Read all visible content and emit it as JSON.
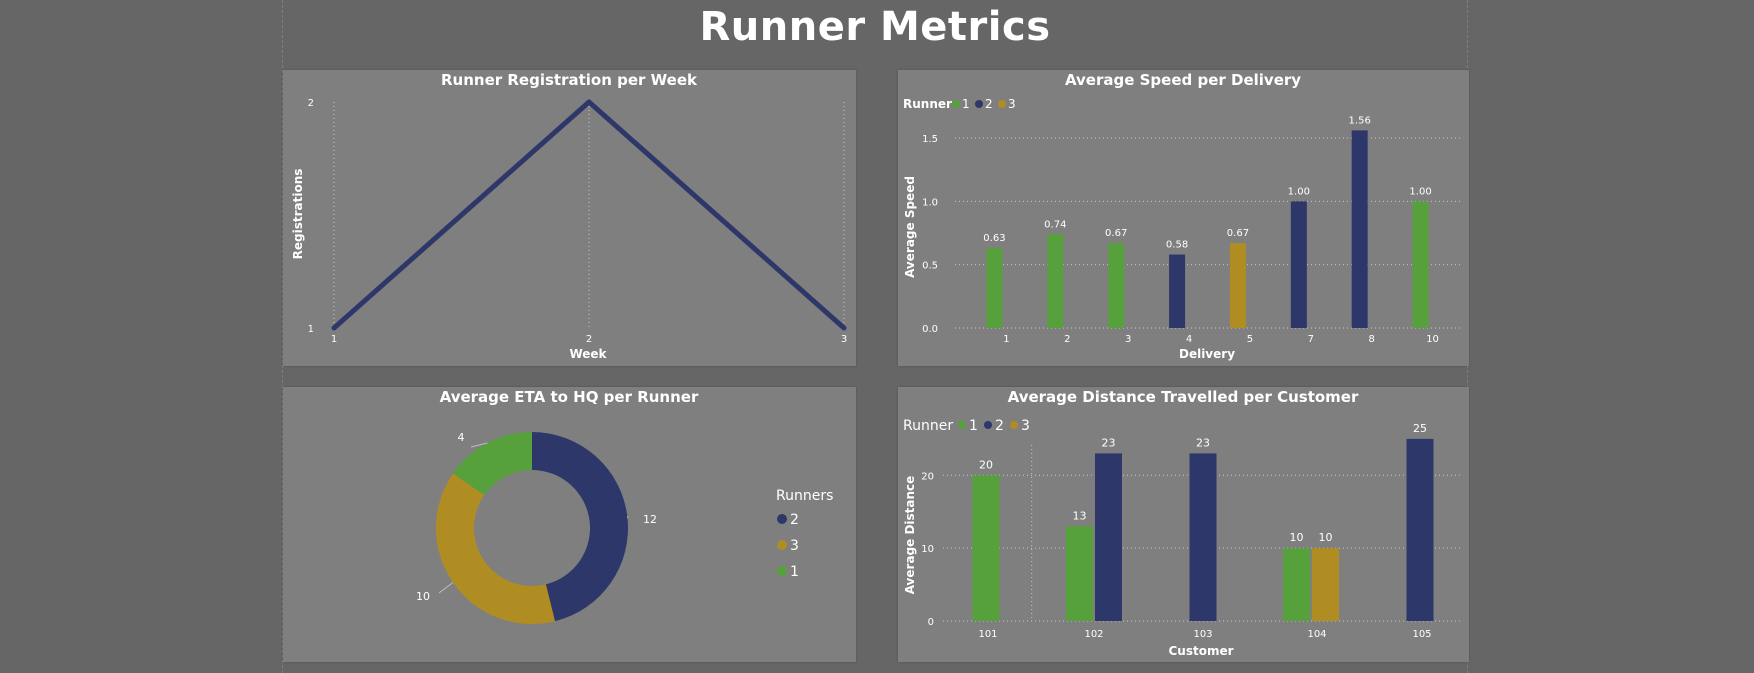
{
  "page": {
    "title": "Runner Metrics"
  },
  "colors": {
    "runner1": "#57a13c",
    "runner2": "#2d3769",
    "runner3": "#b08d22",
    "panel": "#7f7f7f",
    "background": "#666666"
  },
  "chart_data": [
    {
      "id": "registrations",
      "type": "line",
      "title": "Runner Registration per Week",
      "xlabel": "Week",
      "ylabel": "Registrations",
      "x": [
        "1",
        "2",
        "3"
      ],
      "y": [
        1,
        2,
        1
      ],
      "ylim": [
        1,
        2
      ],
      "yticks": [
        "1",
        "2"
      ],
      "grid": "vertical dotted",
      "color": "#2d3769"
    },
    {
      "id": "speed",
      "type": "bar",
      "title": "Average Speed per Delivery",
      "xlabel": "Delivery",
      "ylabel": "Average Speed",
      "legend_title": "Runner",
      "legend": [
        "1",
        "2",
        "3"
      ],
      "legend_position": "top-left",
      "categories": [
        "1",
        "2",
        "3",
        "4",
        "5",
        "7",
        "8",
        "10"
      ],
      "values": [
        0.63,
        0.74,
        0.67,
        0.58,
        0.67,
        1.0,
        1.56,
        1.0
      ],
      "value_labels": [
        "0.63",
        "0.74",
        "0.67",
        "0.58",
        "0.67",
        "1.00",
        "1.56",
        "1.00"
      ],
      "runner": [
        "1",
        "1",
        "1",
        "2",
        "3",
        "2",
        "2",
        "1"
      ],
      "ylim": [
        0,
        1.8
      ],
      "yticks": [
        "0.0",
        "0.5",
        "1.0",
        "1.5"
      ],
      "grid": "horizontal dotted"
    },
    {
      "id": "eta",
      "type": "pie",
      "title": "Average ETA to HQ per Runner",
      "legend_title": "Runners",
      "legend_position": "right",
      "labels": [
        "2",
        "3",
        "1"
      ],
      "values": [
        12,
        10,
        4
      ],
      "value_labels": [
        "12",
        "10",
        "4"
      ],
      "colors": [
        "#2d3769",
        "#b08d22",
        "#57a13c"
      ]
    },
    {
      "id": "distance",
      "type": "bar",
      "title": "Average Distance Travelled per Customer",
      "xlabel": "Customer",
      "ylabel": "Average Distance",
      "legend_title": "Runner",
      "legend": [
        "1",
        "2",
        "3"
      ],
      "legend_position": "top-left",
      "categories": [
        "101",
        "102",
        "103",
        "104",
        "105"
      ],
      "series": [
        {
          "name": "1",
          "values": [
            20,
            13,
            null,
            10,
            null
          ],
          "value_labels": [
            "20",
            "13",
            "",
            "10",
            ""
          ]
        },
        {
          "name": "2",
          "values": [
            null,
            23,
            23,
            null,
            25
          ],
          "value_labels": [
            "",
            "23",
            "23",
            "",
            "25"
          ]
        },
        {
          "name": "3",
          "values": [
            null,
            null,
            null,
            10,
            null
          ],
          "value_labels": [
            "",
            "",
            "",
            "10",
            ""
          ]
        }
      ],
      "ylim": [
        0,
        28
      ],
      "yticks": [
        "0",
        "10",
        "20"
      ],
      "grid": "horizontal and vertical dotted"
    }
  ]
}
